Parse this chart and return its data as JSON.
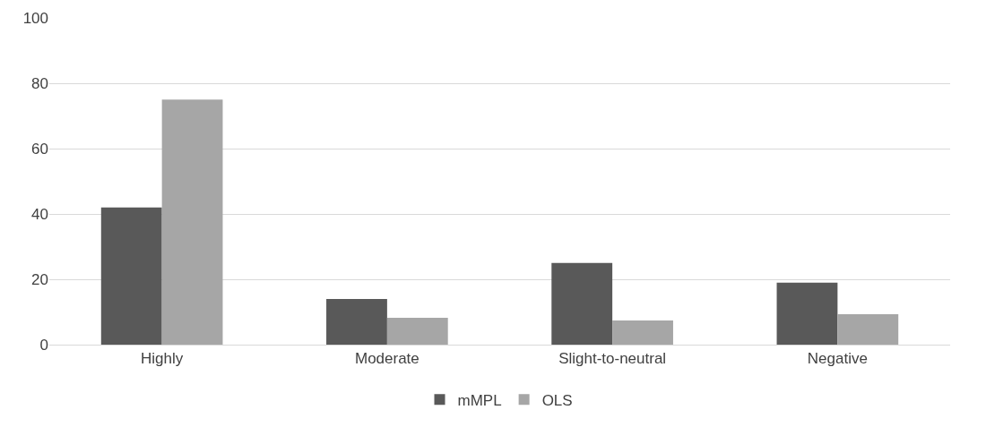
{
  "chart_data": {
    "type": "bar",
    "categories": [
      "Highly",
      "Moderate",
      "Slight-to-neutral",
      "Negative"
    ],
    "series": [
      {
        "name": "mMPL",
        "color": "#595959",
        "values": [
          42,
          14,
          25,
          19
        ]
      },
      {
        "name": "OLS",
        "color": "#a6a6a6",
        "values": [
          75,
          8.2,
          7.4,
          9.3
        ]
      }
    ],
    "ylim": [
      0,
      100
    ],
    "yticks": [
      0,
      20,
      40,
      60,
      80,
      100
    ],
    "grid": "y",
    "legend": "bottom"
  }
}
